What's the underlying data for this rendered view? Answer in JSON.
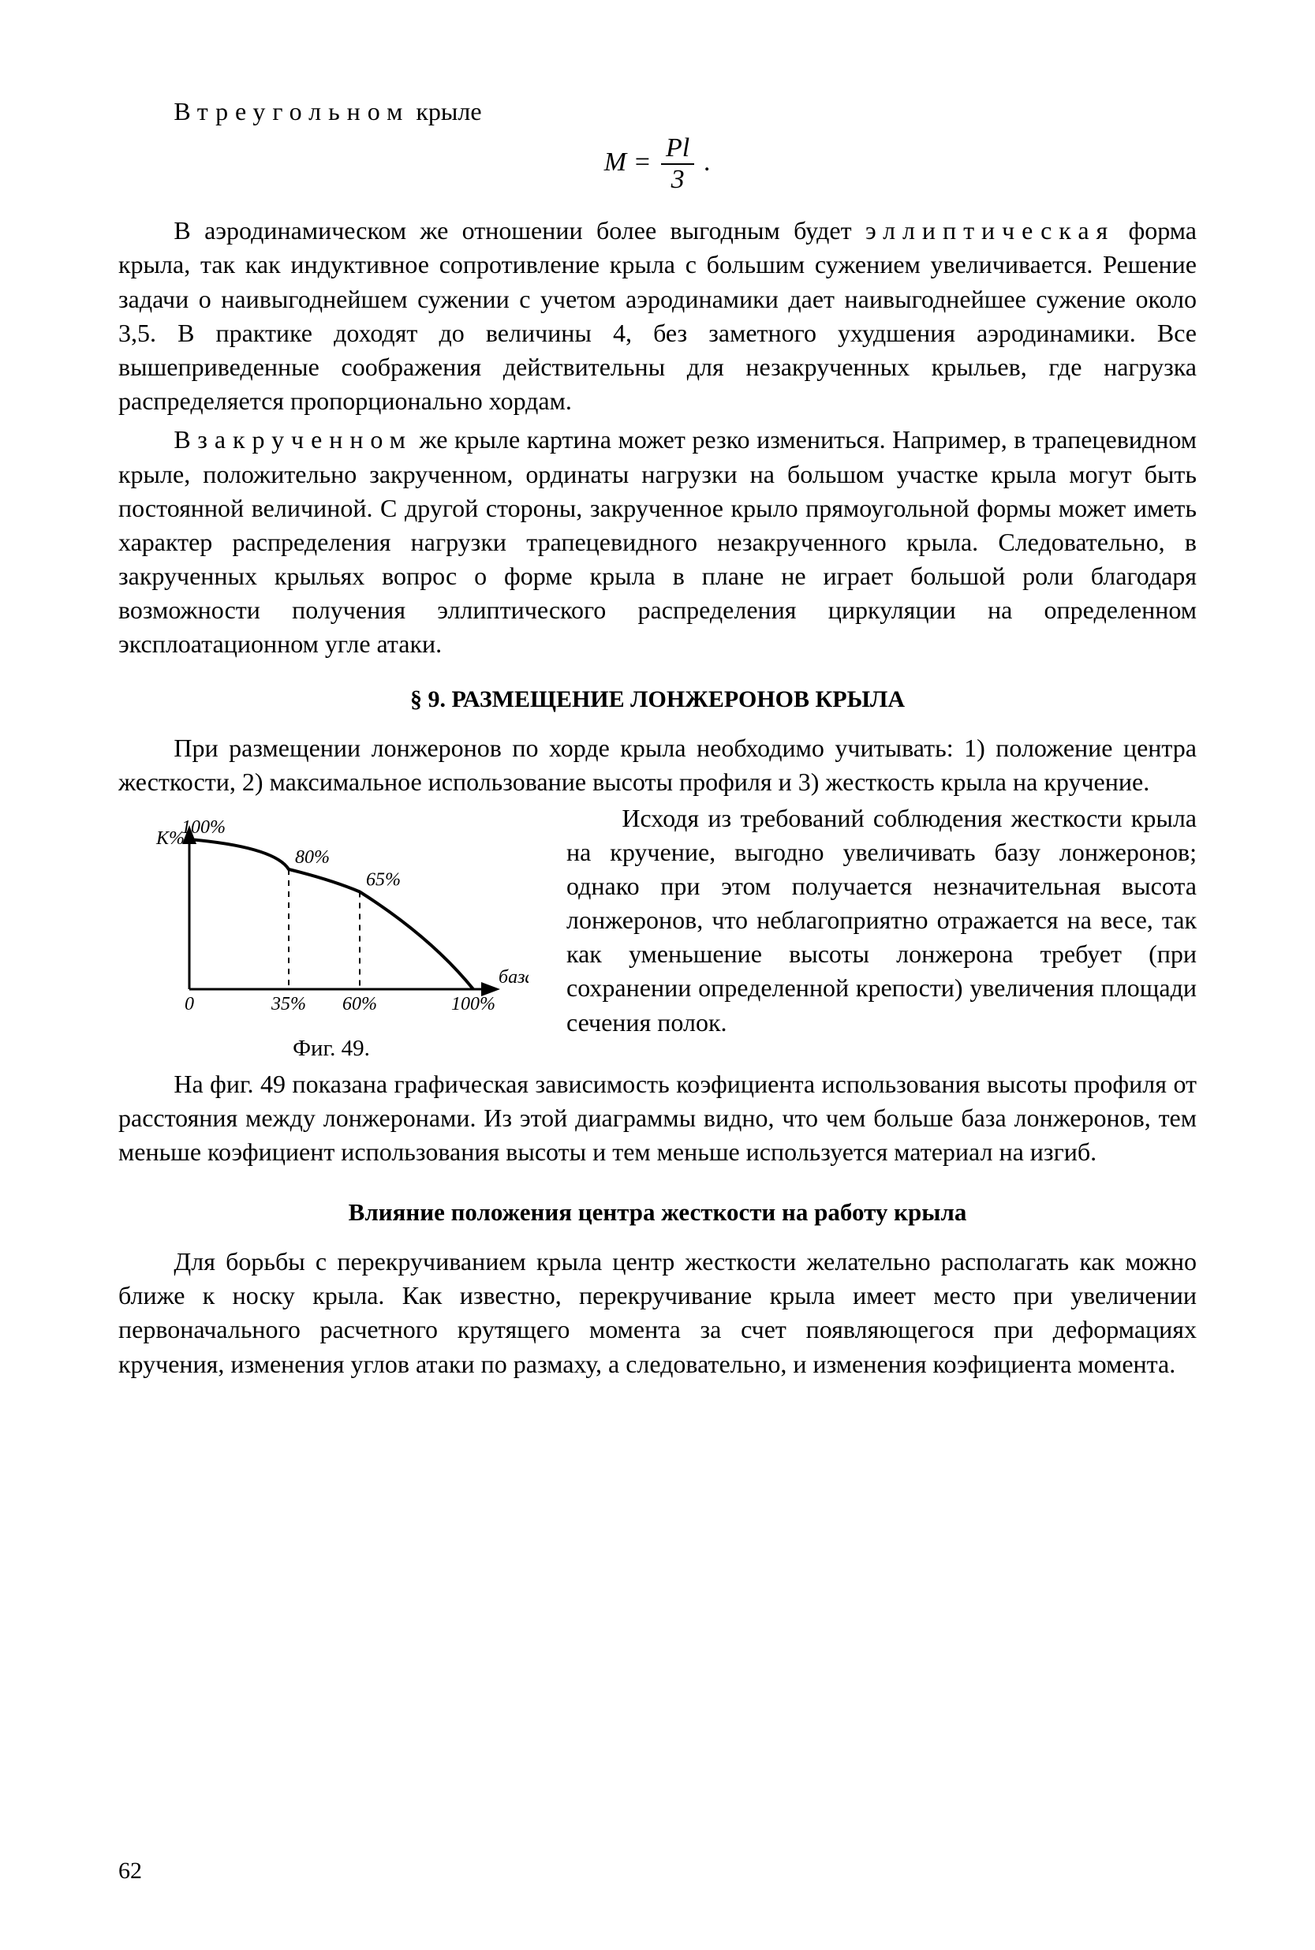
{
  "intro_line_prefix": "В ",
  "intro_line_spaced": "треугольном",
  "intro_line_suffix": " крыле",
  "formula": {
    "lhs": "M",
    "eq": "=",
    "num": "Pl",
    "den": "3",
    "tail": " ."
  },
  "p1_a": "В аэродинамическом же отношении более выгодным будет ",
  "p1_spaced": "эллип­тическая",
  "p1_b": " форма крыла, так как индуктивное сопротивление крыла с большим сужением увеличивается. Решение задачи о наи­выгоднейшем сужении с учетом аэродинамики дает наивыгоднейшее сужение около 3,5. В практике доходят до величины 4, без замет­ного ухудшения аэродинамики. Все вышеприведенные соображения действительны для незакрученных крыльев, где нагрузка распреде­ляется пропорционально хордам.",
  "p2_a": "В ",
  "p2_spaced": "закрученном",
  "p2_b": " же крыле картина может резко измениться. Например, в трапецевидном крыле, положительно закрученном, ординаты нагрузки на большом участке крыла могут быть постоянной величиной. С другой стороны, закрученное крыло прямоугольной формы может иметь характер распределения нагрузки трапецевид­ного незакрученного крыла. Следовательно, в закрученных крыльях вопрос о форме крыла в плане не играет большой роли благодаря возможности получения эллиптического распределения циркуляции на определенном эксплоатационном угле атаки.",
  "h1": "§ 9. РАЗМЕЩЕНИЕ ЛОНЖЕРОНОВ КРЫЛА",
  "p3": "При размещении лонжеронов по хорде крыла необходимо учиты­вать: 1) положение центра жесткости, 2) максимальное использо­вание высоты профиля и 3) жесткость крыла на кручение.",
  "p4": "Исходя из требований соблюде­ния жесткости крыла на кручение, выгодно увеличивать базу лонжеро­нов; однако при этом получается незначительная высота лонжеронов, что неблагоприятно отражается на весе, так как уменьшение высоты лон­жерона требует (при сохранении опре­деленной крепости) увеличения площади сечения полок.",
  "p5": "На фиг. 49 показана графическая зависимость коэфициента исполь­зования высоты профиля от расстояния между лонжеронами. Из этой диаграммы видно, что чем больше база лонжеронов, тем меньше ко­эфициент использования высоты и тем меньше используется материал на изгиб.",
  "h2": "Влияние положения центра жесткости на работу крыла",
  "p6": "Для борьбы с перекручиванием крыла центр жесткости желательно располагать как можно ближе к носку крыла. Как известно, пере­кручивание крыла имеет место при увеличении первоначального расчетного крутящего момента за счет появляющегося при дефор­мациях кручения, изменения углов атаки по размаху, а следовательно, и изменения коэфициента момента.",
  "figure": {
    "caption": "Фиг. 49.",
    "y_axis_label": "К%",
    "x_axis_label": "база",
    "x_ticks": [
      {
        "label": "0",
        "rel": 0.0
      },
      {
        "label": "35%",
        "rel": 0.35
      },
      {
        "label": "60%",
        "rel": 0.6
      },
      {
        "label": "100%",
        "rel": 1.0
      }
    ],
    "curve_points": [
      {
        "rel_x": 0.0,
        "rel_y": 1.0,
        "label": "100%"
      },
      {
        "rel_x": 0.35,
        "rel_y": 0.8,
        "label": "80%"
      },
      {
        "rel_x": 0.6,
        "rel_y": 0.65,
        "label": "65%"
      },
      {
        "rel_x": 1.0,
        "rel_y": 0.0,
        "label": ""
      }
    ],
    "colors": {
      "axis": "#000000",
      "curve": "#000000",
      "text": "#000000",
      "dash": "#000000"
    },
    "line_width_axis": 3,
    "line_width_curve": 4
  },
  "page_number": "62"
}
